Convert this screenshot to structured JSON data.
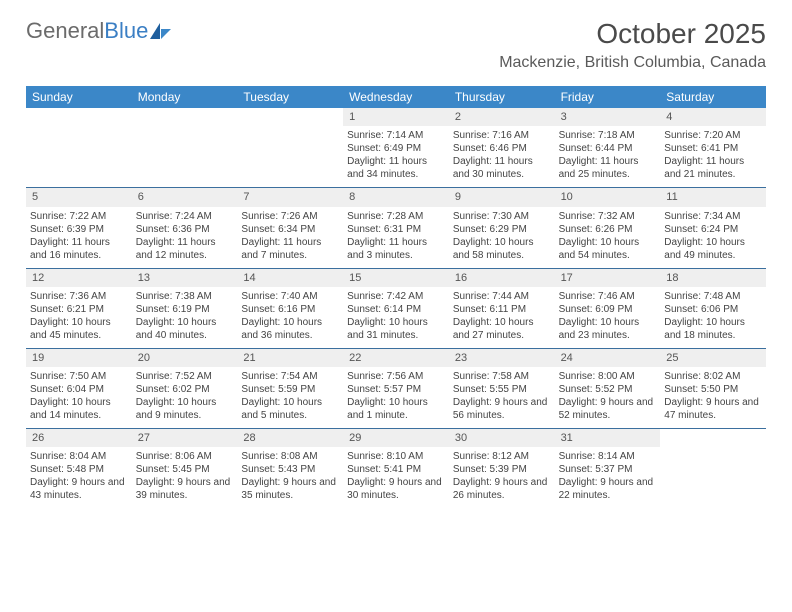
{
  "logo": {
    "text1": "General",
    "text2": "Blue"
  },
  "title": "October 2025",
  "location": "Mackenzie, British Columbia, Canada",
  "colors": {
    "header_bg": "#3b87c8",
    "header_text": "#ffffff",
    "daynum_bg": "#efefef",
    "rule": "#3b6f9e",
    "logo_gray": "#6b6b6b",
    "logo_blue": "#3b7fc4"
  },
  "day_names": [
    "Sunday",
    "Monday",
    "Tuesday",
    "Wednesday",
    "Thursday",
    "Friday",
    "Saturday"
  ],
  "weeks": [
    [
      {
        "n": "",
        "lines": []
      },
      {
        "n": "",
        "lines": []
      },
      {
        "n": "",
        "lines": []
      },
      {
        "n": "1",
        "lines": [
          "Sunrise: 7:14 AM",
          "Sunset: 6:49 PM",
          "Daylight: 11 hours and 34 minutes."
        ]
      },
      {
        "n": "2",
        "lines": [
          "Sunrise: 7:16 AM",
          "Sunset: 6:46 PM",
          "Daylight: 11 hours and 30 minutes."
        ]
      },
      {
        "n": "3",
        "lines": [
          "Sunrise: 7:18 AM",
          "Sunset: 6:44 PM",
          "Daylight: 11 hours and 25 minutes."
        ]
      },
      {
        "n": "4",
        "lines": [
          "Sunrise: 7:20 AM",
          "Sunset: 6:41 PM",
          "Daylight: 11 hours and 21 minutes."
        ]
      }
    ],
    [
      {
        "n": "5",
        "lines": [
          "Sunrise: 7:22 AM",
          "Sunset: 6:39 PM",
          "Daylight: 11 hours and 16 minutes."
        ]
      },
      {
        "n": "6",
        "lines": [
          "Sunrise: 7:24 AM",
          "Sunset: 6:36 PM",
          "Daylight: 11 hours and 12 minutes."
        ]
      },
      {
        "n": "7",
        "lines": [
          "Sunrise: 7:26 AM",
          "Sunset: 6:34 PM",
          "Daylight: 11 hours and 7 minutes."
        ]
      },
      {
        "n": "8",
        "lines": [
          "Sunrise: 7:28 AM",
          "Sunset: 6:31 PM",
          "Daylight: 11 hours and 3 minutes."
        ]
      },
      {
        "n": "9",
        "lines": [
          "Sunrise: 7:30 AM",
          "Sunset: 6:29 PM",
          "Daylight: 10 hours and 58 minutes."
        ]
      },
      {
        "n": "10",
        "lines": [
          "Sunrise: 7:32 AM",
          "Sunset: 6:26 PM",
          "Daylight: 10 hours and 54 minutes."
        ]
      },
      {
        "n": "11",
        "lines": [
          "Sunrise: 7:34 AM",
          "Sunset: 6:24 PM",
          "Daylight: 10 hours and 49 minutes."
        ]
      }
    ],
    [
      {
        "n": "12",
        "lines": [
          "Sunrise: 7:36 AM",
          "Sunset: 6:21 PM",
          "Daylight: 10 hours and 45 minutes."
        ]
      },
      {
        "n": "13",
        "lines": [
          "Sunrise: 7:38 AM",
          "Sunset: 6:19 PM",
          "Daylight: 10 hours and 40 minutes."
        ]
      },
      {
        "n": "14",
        "lines": [
          "Sunrise: 7:40 AM",
          "Sunset: 6:16 PM",
          "Daylight: 10 hours and 36 minutes."
        ]
      },
      {
        "n": "15",
        "lines": [
          "Sunrise: 7:42 AM",
          "Sunset: 6:14 PM",
          "Daylight: 10 hours and 31 minutes."
        ]
      },
      {
        "n": "16",
        "lines": [
          "Sunrise: 7:44 AM",
          "Sunset: 6:11 PM",
          "Daylight: 10 hours and 27 minutes."
        ]
      },
      {
        "n": "17",
        "lines": [
          "Sunrise: 7:46 AM",
          "Sunset: 6:09 PM",
          "Daylight: 10 hours and 23 minutes."
        ]
      },
      {
        "n": "18",
        "lines": [
          "Sunrise: 7:48 AM",
          "Sunset: 6:06 PM",
          "Daylight: 10 hours and 18 minutes."
        ]
      }
    ],
    [
      {
        "n": "19",
        "lines": [
          "Sunrise: 7:50 AM",
          "Sunset: 6:04 PM",
          "Daylight: 10 hours and 14 minutes."
        ]
      },
      {
        "n": "20",
        "lines": [
          "Sunrise: 7:52 AM",
          "Sunset: 6:02 PM",
          "Daylight: 10 hours and 9 minutes."
        ]
      },
      {
        "n": "21",
        "lines": [
          "Sunrise: 7:54 AM",
          "Sunset: 5:59 PM",
          "Daylight: 10 hours and 5 minutes."
        ]
      },
      {
        "n": "22",
        "lines": [
          "Sunrise: 7:56 AM",
          "Sunset: 5:57 PM",
          "Daylight: 10 hours and 1 minute."
        ]
      },
      {
        "n": "23",
        "lines": [
          "Sunrise: 7:58 AM",
          "Sunset: 5:55 PM",
          "Daylight: 9 hours and 56 minutes."
        ]
      },
      {
        "n": "24",
        "lines": [
          "Sunrise: 8:00 AM",
          "Sunset: 5:52 PM",
          "Daylight: 9 hours and 52 minutes."
        ]
      },
      {
        "n": "25",
        "lines": [
          "Sunrise: 8:02 AM",
          "Sunset: 5:50 PM",
          "Daylight: 9 hours and 47 minutes."
        ]
      }
    ],
    [
      {
        "n": "26",
        "lines": [
          "Sunrise: 8:04 AM",
          "Sunset: 5:48 PM",
          "Daylight: 9 hours and 43 minutes."
        ]
      },
      {
        "n": "27",
        "lines": [
          "Sunrise: 8:06 AM",
          "Sunset: 5:45 PM",
          "Daylight: 9 hours and 39 minutes."
        ]
      },
      {
        "n": "28",
        "lines": [
          "Sunrise: 8:08 AM",
          "Sunset: 5:43 PM",
          "Daylight: 9 hours and 35 minutes."
        ]
      },
      {
        "n": "29",
        "lines": [
          "Sunrise: 8:10 AM",
          "Sunset: 5:41 PM",
          "Daylight: 9 hours and 30 minutes."
        ]
      },
      {
        "n": "30",
        "lines": [
          "Sunrise: 8:12 AM",
          "Sunset: 5:39 PM",
          "Daylight: 9 hours and 26 minutes."
        ]
      },
      {
        "n": "31",
        "lines": [
          "Sunrise: 8:14 AM",
          "Sunset: 5:37 PM",
          "Daylight: 9 hours and 22 minutes."
        ]
      },
      {
        "n": "",
        "lines": []
      }
    ]
  ]
}
